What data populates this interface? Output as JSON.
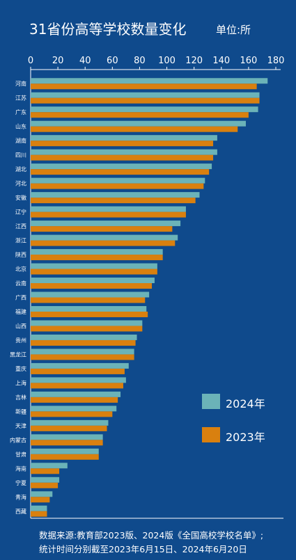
{
  "header": {
    "title": "31省份高等学校数量变化",
    "unit": "单位:所"
  },
  "colors": {
    "background": "#0f4a8c",
    "series_2024": "#6bb3b8",
    "series_2023": "#d9800f",
    "axis": "#ffffff"
  },
  "chart_data": {
    "type": "bar",
    "orientation": "horizontal",
    "xlim": [
      0,
      180
    ],
    "ticks": [
      "0",
      "20",
      "40",
      "60",
      "80",
      "100",
      "120",
      "140",
      "160",
      "180"
    ],
    "categories": [
      "河南",
      "江苏",
      "广东",
      "山东",
      "湖南",
      "四川",
      "湖北",
      "河北",
      "安徽",
      "辽宁",
      "江西",
      "浙江",
      "陕西",
      "北京",
      "云南",
      "广西",
      "福建",
      "山西",
      "贵州",
      "黑龙江",
      "重庆",
      "上海",
      "吉林",
      "新疆",
      "天津",
      "内蒙古",
      "甘肃",
      "海南",
      "宁夏",
      "青海",
      "西藏"
    ],
    "series": [
      {
        "name": "2024年",
        "values": [
          174,
          168,
          167,
          158,
          137,
          137,
          133,
          128,
          124,
          114,
          110,
          108,
          97,
          93,
          91,
          87,
          85,
          82,
          78,
          76,
          72,
          70,
          66,
          63,
          57,
          53,
          50,
          27,
          21,
          16,
          12
        ]
      },
      {
        "name": "2023年",
        "values": [
          166,
          168,
          160,
          152,
          134,
          134,
          131,
          127,
          121,
          114,
          104,
          106,
          97,
          93,
          89,
          84,
          86,
          82,
          77,
          76,
          69,
          68,
          64,
          60,
          56,
          53,
          50,
          21,
          20,
          14,
          12
        ]
      }
    ],
    "legend_position": "right"
  },
  "footnote": {
    "line1": "数据来源:教育部2023版、2024版《全国高校学校名单》;",
    "line2": "统计时间分别截至2023年6月15日、2024年6月20日"
  }
}
